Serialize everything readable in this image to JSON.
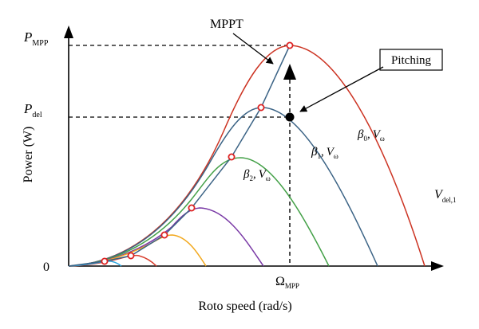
{
  "axes": {
    "xlabel": "Roto speed (rad/s)",
    "ylabel": "Power (W)",
    "origin_label": "0",
    "p_mpp": {
      "main": "P",
      "sub": "MPP"
    },
    "p_del": {
      "main": "P",
      "sub": "del"
    },
    "omega_mpp": {
      "main": "Ω",
      "sub": "MPP"
    }
  },
  "annotations": {
    "mppt": "MPPT",
    "pitching": "Pitching",
    "v_del": {
      "main": "V",
      "sub": "del,1"
    },
    "curve_labels": [
      {
        "beta": "β",
        "beta_sub": "0",
        "sep": ",",
        "v": "V",
        "v_sub": "ω"
      },
      {
        "beta": "β",
        "beta_sub": "1",
        "sep": ",",
        "v": "V",
        "v_sub": "ω"
      },
      {
        "beta": "β",
        "beta_sub": "2",
        "sep": ",",
        "v": "V",
        "v_sub": "ω"
      }
    ]
  },
  "curve_colors": [
    "#cc3322",
    "#3b6385",
    "#43a047",
    "#7a3aa6",
    "#f2a81d",
    "#d94030",
    "#2ea7e0"
  ],
  "marker_color": "#dd2222"
}
